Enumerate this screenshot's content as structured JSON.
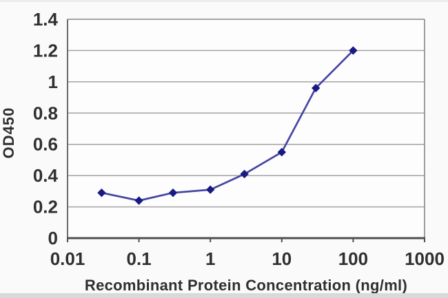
{
  "chart_data": {
    "type": "line",
    "title": "",
    "xlabel": "Recombinant Protein Concentration (ng/ml)",
    "ylabel": "OD450",
    "x_scale": "log",
    "xlim": [
      0.01,
      1000
    ],
    "ylim": [
      0,
      1.4
    ],
    "grid": "horizontal-only",
    "legend": "none",
    "x": [
      0.03,
      0.1,
      0.3,
      1,
      3,
      10,
      30,
      100
    ],
    "series": [
      {
        "name": "OD450",
        "values": [
          0.29,
          0.24,
          0.29,
          0.31,
          0.41,
          0.55,
          0.96,
          1.2
        ],
        "color": "#4545a4",
        "marker": "diamond",
        "marker_color": "#1a1a85"
      }
    ],
    "x_ticks": [
      {
        "value": 0.01,
        "label": "0.01"
      },
      {
        "value": 0.1,
        "label": "0.1"
      },
      {
        "value": 1,
        "label": "1"
      },
      {
        "value": 10,
        "label": "10"
      },
      {
        "value": 100,
        "label": "100"
      },
      {
        "value": 1000,
        "label": "1000"
      }
    ],
    "y_ticks": [
      {
        "value": 0,
        "label": "0"
      },
      {
        "value": 0.2,
        "label": "0.2"
      },
      {
        "value": 0.4,
        "label": "0.4"
      },
      {
        "value": 0.6,
        "label": "0.6"
      },
      {
        "value": 0.8,
        "label": "0.8"
      },
      {
        "value": 1,
        "label": "1"
      },
      {
        "value": 1.2,
        "label": "1.2"
      },
      {
        "value": 1.4,
        "label": "1.4"
      }
    ],
    "colors": {
      "grid": "#a3a3a3",
      "frame": "#868686",
      "axis": "#4f4f4f",
      "tick_text": "#2f2f2f",
      "plot_bg": "#fdfdfd"
    }
  }
}
